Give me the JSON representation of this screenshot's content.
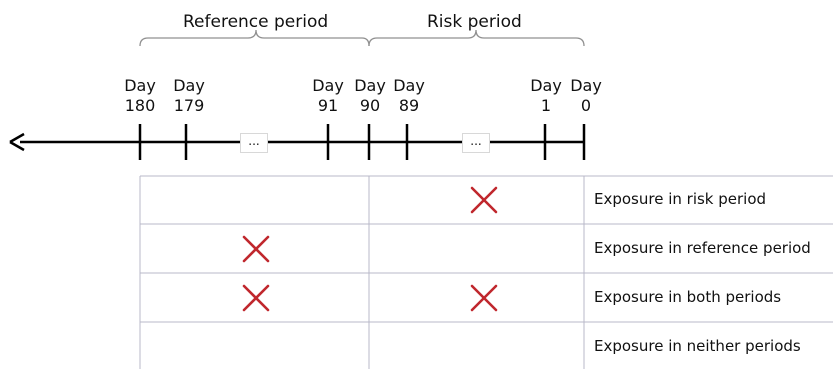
{
  "periods": {
    "reference_label": "Reference period",
    "risk_label": "Risk period"
  },
  "timeline": {
    "days": [
      {
        "line1": "Day",
        "line2": "180"
      },
      {
        "line1": "Day",
        "line2": "179"
      },
      {
        "line1": "Day",
        "line2": "91"
      },
      {
        "line1": "Day",
        "line2": "90"
      },
      {
        "line1": "Day",
        "line2": "89"
      },
      {
        "line1": "Day",
        "line2": "1"
      },
      {
        "line1": "Day",
        "line2": "0"
      }
    ],
    "ellipsis": "..."
  },
  "rows": [
    {
      "label": "Exposure in risk period",
      "reference_mark": false,
      "risk_mark": true
    },
    {
      "label": "Exposure in reference period",
      "reference_mark": true,
      "risk_mark": false
    },
    {
      "label": "Exposure in both periods",
      "reference_mark": true,
      "risk_mark": true
    },
    {
      "label": "Exposure in neither periods",
      "reference_mark": false,
      "risk_mark": false
    }
  ],
  "colors": {
    "line": "#000000",
    "grid": "#b8b8c8",
    "bracket": "#909090",
    "mark": "#c0272d"
  }
}
